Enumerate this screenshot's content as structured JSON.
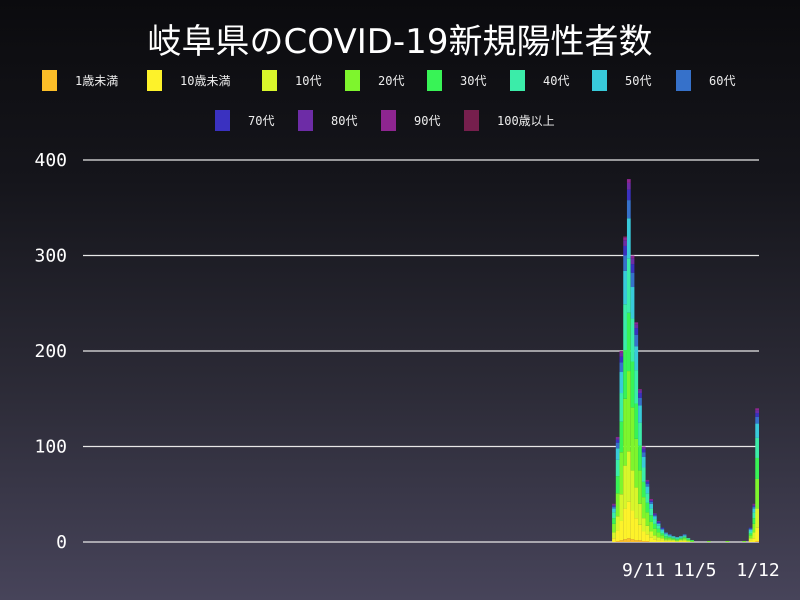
{
  "chart_data": {
    "type": "bar",
    "stacked": true,
    "title": "岐阜県のCOVID-19新規陽性者数",
    "xlabel": "",
    "ylabel": "",
    "ylim": [
      0,
      400
    ],
    "xlim": [
      "2020-01-17",
      "2022-01-13"
    ],
    "grid": true,
    "legend_placement": "top",
    "yticks": [
      "0",
      "100",
      "200",
      "300",
      "400"
    ],
    "xticks": [
      {
        "date": "2021-09-11",
        "label": "9/11"
      },
      {
        "date": "2021-11-05",
        "label": "11/5"
      },
      {
        "date": "2022-01-12",
        "label": "1/12"
      }
    ],
    "x": [
      "2021-08-10",
      "2021-08-14",
      "2021-08-18",
      "2021-08-22",
      "2021-08-26",
      "2021-08-30",
      "2021-09-03",
      "2021-09-07",
      "2021-09-11",
      "2021-09-15",
      "2021-09-19",
      "2021-09-23",
      "2021-09-27",
      "2021-10-01",
      "2021-10-05",
      "2021-10-09",
      "2021-10-13",
      "2021-10-17",
      "2021-10-21",
      "2021-10-25",
      "2021-10-29",
      "2021-11-02",
      "2021-11-20",
      "2021-12-10",
      "2021-12-28",
      "2022-01-04",
      "2022-01-08",
      "2022-01-12"
    ],
    "series": [
      {
        "name": "1歳未満",
        "color": "#fcbe28",
        "values": [
          0,
          1,
          2,
          3,
          4,
          3,
          2,
          2,
          1,
          1,
          0,
          0,
          0,
          0,
          0,
          0,
          0,
          0,
          0,
          0,
          0,
          0,
          0,
          0,
          0,
          0,
          0,
          1
        ]
      },
      {
        "name": "10歳未満",
        "color": "#fdf22a",
        "values": [
          4,
          11,
          20,
          32,
          38,
          30,
          23,
          16,
          10,
          7,
          5,
          3,
          2,
          2,
          1,
          1,
          1,
          0,
          1,
          1,
          0,
          0,
          0,
          0,
          0,
          2,
          4,
          14
        ]
      },
      {
        "name": "10代",
        "color": "#d8f62b",
        "values": [
          6,
          15,
          28,
          45,
          53,
          42,
          32,
          22,
          14,
          9,
          6,
          4,
          3,
          2,
          1,
          1,
          1,
          1,
          1,
          1,
          1,
          0,
          0,
          0,
          0,
          2,
          6,
          20
        ]
      },
      {
        "name": "20代",
        "color": "#7ef52d",
        "values": [
          9,
          24,
          44,
          70,
          84,
          66,
          51,
          35,
          22,
          14,
          10,
          7,
          5,
          3,
          2,
          2,
          1,
          1,
          1,
          2,
          1,
          1,
          1,
          1,
          1,
          3,
          9,
          31
        ]
      },
      {
        "name": "30代",
        "color": "#38f356",
        "values": [
          6,
          18,
          32,
          51,
          61,
          48,
          37,
          26,
          16,
          10,
          7,
          5,
          4,
          2,
          2,
          1,
          1,
          1,
          1,
          1,
          1,
          1,
          0,
          0,
          0,
          2,
          6,
          22
        ]
      },
      {
        "name": "40代",
        "color": "#3beca9",
        "values": [
          6,
          17,
          30,
          48,
          57,
          45,
          35,
          24,
          15,
          10,
          7,
          5,
          3,
          2,
          2,
          1,
          1,
          1,
          1,
          1,
          1,
          0,
          0,
          0,
          0,
          2,
          6,
          21
        ]
      },
      {
        "name": "50代",
        "color": "#38cada",
        "values": [
          4,
          12,
          22,
          35,
          42,
          33,
          25,
          18,
          11,
          7,
          5,
          3,
          2,
          2,
          1,
          1,
          1,
          1,
          1,
          1,
          0,
          0,
          0,
          0,
          0,
          2,
          4,
          15
        ]
      },
      {
        "name": "60代",
        "color": "#3671ca",
        "values": [
          2,
          6,
          10,
          16,
          19,
          15,
          12,
          8,
          5,
          3,
          2,
          1,
          1,
          1,
          1,
          1,
          0,
          0,
          0,
          1,
          0,
          0,
          0,
          0,
          0,
          1,
          2,
          7
        ]
      },
      {
        "name": "70代",
        "color": "#3a31c0",
        "values": [
          1,
          3,
          6,
          10,
          11,
          9,
          7,
          5,
          3,
          2,
          1,
          1,
          1,
          1,
          0,
          0,
          0,
          0,
          0,
          0,
          0,
          0,
          0,
          0,
          0,
          1,
          1,
          4
        ]
      },
      {
        "name": "80代",
        "color": "#6d2ca6",
        "values": [
          1,
          2,
          4,
          6,
          7,
          6,
          4,
          3,
          2,
          1,
          1,
          1,
          1,
          0,
          0,
          0,
          0,
          0,
          0,
          0,
          0,
          0,
          0,
          0,
          0,
          0,
          1,
          3
        ]
      },
      {
        "name": "90代",
        "color": "#8e2590",
        "values": [
          1,
          1,
          2,
          3,
          4,
          3,
          2,
          1,
          1,
          1,
          1,
          0,
          0,
          0,
          0,
          0,
          0,
          0,
          0,
          0,
          0,
          0,
          0,
          0,
          0,
          0,
          1,
          2
        ]
      },
      {
        "name": "100歳以上",
        "color": "#761f4d",
        "values": [
          0,
          0,
          0,
          1,
          0,
          0,
          0,
          0,
          0,
          0,
          0,
          0,
          0,
          0,
          0,
          0,
          0,
          0,
          0,
          0,
          0,
          0,
          0,
          0,
          0,
          0,
          0,
          0
        ]
      }
    ]
  }
}
